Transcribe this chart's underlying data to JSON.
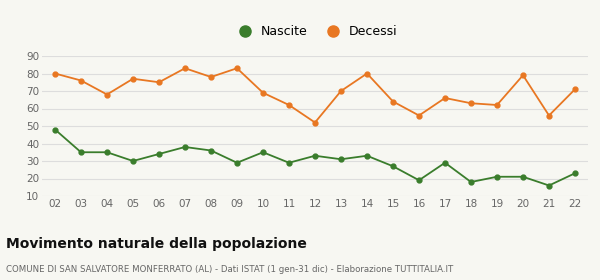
{
  "years": [
    "02",
    "03",
    "04",
    "05",
    "06",
    "07",
    "08",
    "09",
    "10",
    "11",
    "12",
    "13",
    "14",
    "15",
    "16",
    "17",
    "18",
    "19",
    "20",
    "21",
    "22"
  ],
  "nascite": [
    48,
    35,
    35,
    30,
    34,
    38,
    36,
    29,
    35,
    29,
    33,
    31,
    33,
    27,
    19,
    29,
    18,
    21,
    21,
    16,
    23
  ],
  "decessi": [
    80,
    76,
    68,
    77,
    75,
    83,
    78,
    83,
    69,
    62,
    52,
    70,
    80,
    64,
    56,
    66,
    63,
    62,
    79,
    56,
    71
  ],
  "nascite_color": "#3a7d2c",
  "decessi_color": "#e87722",
  "background_color": "#f7f7f2",
  "grid_color": "#dddddd",
  "title": "Movimento naturale della popolazione",
  "subtitle": "COMUNE DI SAN SALVATORE MONFERRATO (AL) - Dati ISTAT (1 gen-31 dic) - Elaborazione TUTTITALIA.IT",
  "legend_nascite": "Nascite",
  "legend_decessi": "Decessi",
  "ylim": [
    10,
    90
  ],
  "yticks": [
    10,
    20,
    30,
    40,
    50,
    60,
    70,
    80,
    90
  ]
}
